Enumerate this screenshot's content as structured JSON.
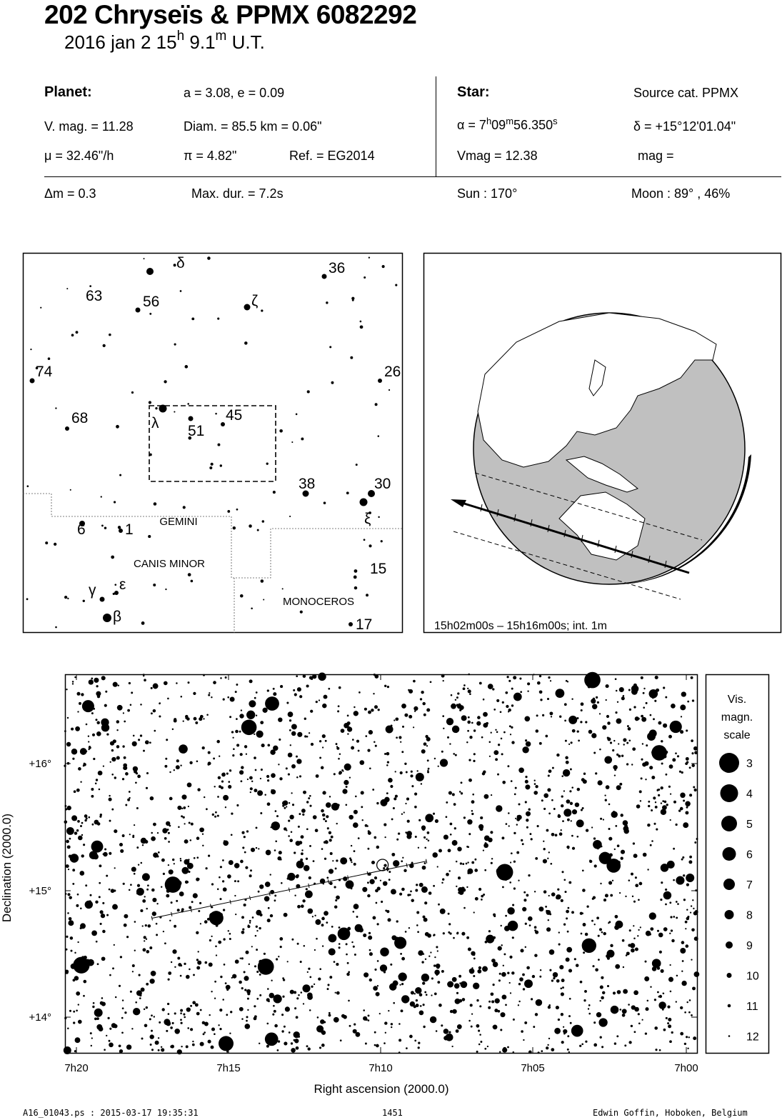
{
  "header": {
    "title": "202 Chryseïs  &  PPMX 6082292",
    "date_prefix": "2016 jan  2  15",
    "hour_unit": "h",
    "minutes": " 9.1",
    "minute_unit": "m",
    "time_suffix": " U.T."
  },
  "planet": {
    "label": "Planet:",
    "ae": "a = 3.08, e = 0.09",
    "vmag": "V. mag. = 11.28",
    "diam": "Diam. = 85.5 km = 0.06\"",
    "mu": "μ =  32.46\"/h",
    "pi": "π =  4.82\"",
    "ref": "Ref. = EG2014"
  },
  "star": {
    "label": "Star:",
    "source": "Source cat.  PPMX",
    "alpha_prefix": "α =  7",
    "alpha_h": "h",
    "alpha_mid": "09",
    "alpha_m": "m",
    "alpha_sec": "56.350",
    "alpha_s": "s",
    "delta": "δ = +15°12'01.04\"",
    "vmag": "Vmag = 12.38",
    "mag": "mag ="
  },
  "event": {
    "dm": "Δm = 0.3",
    "maxdur": "Max. dur. = 7.2s",
    "sun": "Sun : 170°",
    "moon": "Moon :  89° , 46%"
  },
  "finder": {
    "star_labels": [
      "δ",
      "36",
      "63",
      "56",
      "ζ",
      "74",
      "26",
      "68",
      "λ",
      "51",
      "45",
      "38",
      "30",
      "ξ",
      "6",
      "1",
      "15",
      "γ",
      "ε",
      "β",
      "17"
    ],
    "constellations": [
      "GEMINI",
      "CANIS MINOR",
      "MONOCEROS"
    ]
  },
  "globe": {
    "caption": "15h02m00s – 15h16m00s; int.  1m"
  },
  "chart": {
    "ylabel": "Declination (2000.0)",
    "xlabel": "Right ascension (2000.0)",
    "yticks": [
      "+16°",
      "+15°",
      "+14°"
    ],
    "xticks": [
      "7h20",
      "7h15",
      "7h10",
      "7h05",
      "7h00"
    ],
    "legend_title": [
      "Vis.",
      "magn.",
      "scale"
    ],
    "legend_mags": [
      "3",
      "4",
      "5",
      "6",
      "7",
      "8",
      "9",
      "10",
      "11",
      "12"
    ]
  },
  "chart_data": {
    "type": "scatter",
    "xlabel": "Right ascension (2000.0)",
    "ylabel": "Declination (2000.0)",
    "x_ticks": [
      "7h20",
      "7h15",
      "7h10",
      "7h05",
      "7h00"
    ],
    "y_ticks": [
      "+16°",
      "+15°",
      "+14°"
    ],
    "path_ra_hours": [
      7.292,
      7.142
    ],
    "path_dec_deg": [
      14.78,
      15.23
    ],
    "target_ra_hours": 7.166,
    "target_dec_deg": 15.2
  },
  "footer": {
    "file": "A16_01043.ps : 2015-03-17 19:35:31",
    "page": "1451",
    "author": "Edwin Goffin, Hoboken, Belgium"
  }
}
